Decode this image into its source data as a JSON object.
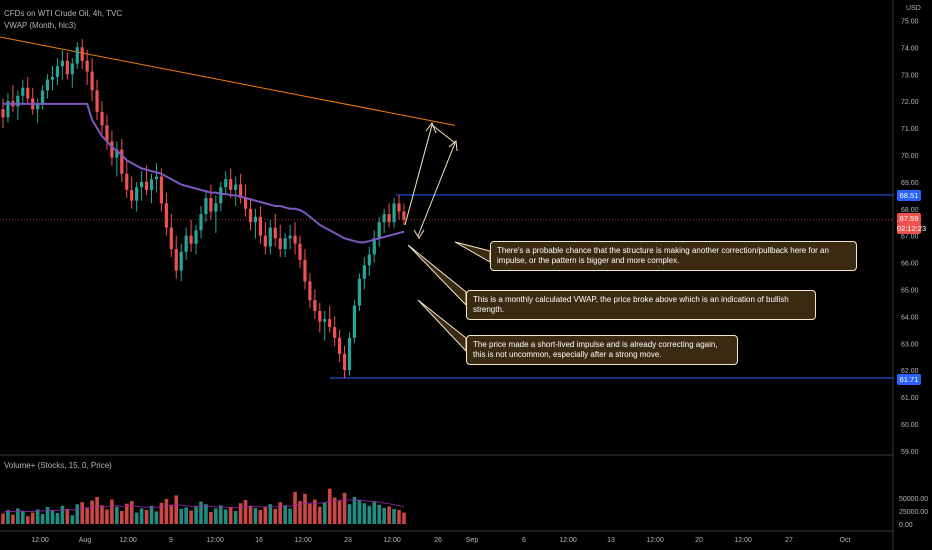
{
  "header": {
    "symbol": "CFDs on WTI Crude Oil, 4h, TVC",
    "indicator": "VWAP (Month, hlc3)",
    "volume_label": "Volume+ (Stocks, 15, 0, Price)",
    "currency": "USD"
  },
  "price_tags": {
    "top_level": "68.51",
    "current_price": "67.59",
    "countdown": "02:12:23",
    "bottom_level": "61.71"
  },
  "annotations": [
    "There's a probable chance that the structure is making another correction/pullback here for an impulse, or the pattern is bigger and more complex.",
    "This is a monthly calculated VWAP, the price broke above which is an indication of bullish strength.",
    "The price made a short-lived impulse and is already correcting again, this is not uncommon, especially after a strong move."
  ],
  "colors": {
    "background": "#000000",
    "up_candle": "#26a69a",
    "down_candle": "#ef5350",
    "vwap": "#7e57c2",
    "trendline": "#f57c00",
    "level_line": "#2962ff",
    "current_price": "#ef5350"
  },
  "chart_data": {
    "type": "candlestick",
    "price_axis": {
      "ticks": [
        "75.00",
        "74.00",
        "73.00",
        "72.00",
        "71.00",
        "70.00",
        "69.00",
        "68.00",
        "67.00",
        "66.00",
        "65.00",
        "64.00",
        "63.00",
        "62.00",
        "61.00",
        "60.00",
        "59.00"
      ],
      "range": [
        59,
        75.5
      ]
    },
    "volume_axis": {
      "ticks": [
        "50000.00",
        "25000.00",
        "0.00"
      ],
      "range": [
        0,
        75000
      ]
    },
    "time_axis": [
      "12:00",
      "Aug",
      "12:00",
      "9",
      "12:00",
      "16",
      "12:00",
      "23",
      "12:00",
      "26",
      "Sep",
      "6",
      "12:00",
      "13",
      "12:00",
      "20",
      "12:00",
      "27",
      "Oct"
    ],
    "candles": [
      {
        "o": 71.7,
        "h": 72.1,
        "l": 71.0,
        "c": 71.4
      },
      {
        "o": 71.4,
        "h": 72.3,
        "l": 71.2,
        "c": 72.0
      },
      {
        "o": 72.0,
        "h": 72.6,
        "l": 71.6,
        "c": 71.8
      },
      {
        "o": 71.8,
        "h": 72.4,
        "l": 71.3,
        "c": 72.2
      },
      {
        "o": 72.2,
        "h": 72.8,
        "l": 71.9,
        "c": 72.5
      },
      {
        "o": 72.5,
        "h": 72.9,
        "l": 71.9,
        "c": 72.1
      },
      {
        "o": 72.1,
        "h": 72.5,
        "l": 71.5,
        "c": 71.7
      },
      {
        "o": 71.7,
        "h": 72.1,
        "l": 71.2,
        "c": 71.9
      },
      {
        "o": 71.9,
        "h": 72.6,
        "l": 71.7,
        "c": 72.4
      },
      {
        "o": 72.4,
        "h": 73.0,
        "l": 72.1,
        "c": 72.8
      },
      {
        "o": 72.8,
        "h": 73.3,
        "l": 72.4,
        "c": 72.9
      },
      {
        "o": 72.9,
        "h": 73.6,
        "l": 72.6,
        "c": 73.3
      },
      {
        "o": 73.3,
        "h": 73.9,
        "l": 72.8,
        "c": 73.5
      },
      {
        "o": 73.5,
        "h": 73.8,
        "l": 72.8,
        "c": 73.0
      },
      {
        "o": 73.0,
        "h": 73.6,
        "l": 72.5,
        "c": 73.4
      },
      {
        "o": 73.4,
        "h": 74.2,
        "l": 73.2,
        "c": 74.0
      },
      {
        "o": 74.0,
        "h": 74.3,
        "l": 73.2,
        "c": 73.5
      },
      {
        "o": 73.5,
        "h": 73.9,
        "l": 72.6,
        "c": 73.1
      },
      {
        "o": 73.1,
        "h": 73.6,
        "l": 72.0,
        "c": 72.4
      },
      {
        "o": 72.4,
        "h": 72.8,
        "l": 71.3,
        "c": 71.6
      },
      {
        "o": 71.6,
        "h": 72.0,
        "l": 70.8,
        "c": 71.1
      },
      {
        "o": 71.1,
        "h": 71.5,
        "l": 70.2,
        "c": 70.5
      },
      {
        "o": 70.5,
        "h": 70.9,
        "l": 69.6,
        "c": 69.9
      },
      {
        "o": 69.9,
        "h": 70.5,
        "l": 69.2,
        "c": 70.2
      },
      {
        "o": 70.2,
        "h": 70.6,
        "l": 69.0,
        "c": 69.3
      },
      {
        "o": 69.3,
        "h": 69.8,
        "l": 68.4,
        "c": 68.7
      },
      {
        "o": 68.7,
        "h": 69.2,
        "l": 68.0,
        "c": 68.3
      },
      {
        "o": 68.3,
        "h": 69.0,
        "l": 67.9,
        "c": 68.8
      },
      {
        "o": 68.8,
        "h": 69.4,
        "l": 68.3,
        "c": 69.0
      },
      {
        "o": 69.0,
        "h": 69.6,
        "l": 68.5,
        "c": 68.7
      },
      {
        "o": 68.7,
        "h": 69.3,
        "l": 68.2,
        "c": 69.1
      },
      {
        "o": 69.1,
        "h": 69.7,
        "l": 68.6,
        "c": 69.2
      },
      {
        "o": 69.2,
        "h": 69.5,
        "l": 67.9,
        "c": 68.2
      },
      {
        "o": 68.2,
        "h": 68.6,
        "l": 67.0,
        "c": 67.3
      },
      {
        "o": 67.3,
        "h": 67.8,
        "l": 66.2,
        "c": 66.5
      },
      {
        "o": 66.5,
        "h": 67.0,
        "l": 65.4,
        "c": 65.7
      },
      {
        "o": 65.7,
        "h": 66.7,
        "l": 65.3,
        "c": 66.4
      },
      {
        "o": 66.4,
        "h": 67.3,
        "l": 66.1,
        "c": 67.0
      },
      {
        "o": 67.0,
        "h": 67.6,
        "l": 66.4,
        "c": 66.7
      },
      {
        "o": 66.7,
        "h": 67.4,
        "l": 66.3,
        "c": 67.2
      },
      {
        "o": 67.2,
        "h": 68.1,
        "l": 66.9,
        "c": 67.8
      },
      {
        "o": 67.8,
        "h": 68.7,
        "l": 67.5,
        "c": 68.4
      },
      {
        "o": 68.4,
        "h": 68.9,
        "l": 67.6,
        "c": 67.9
      },
      {
        "o": 67.9,
        "h": 68.5,
        "l": 67.1,
        "c": 68.2
      },
      {
        "o": 68.2,
        "h": 69.0,
        "l": 67.9,
        "c": 68.8
      },
      {
        "o": 68.8,
        "h": 69.4,
        "l": 68.5,
        "c": 69.1
      },
      {
        "o": 69.1,
        "h": 69.5,
        "l": 68.4,
        "c": 68.7
      },
      {
        "o": 68.7,
        "h": 69.2,
        "l": 68.1,
        "c": 68.9
      },
      {
        "o": 68.9,
        "h": 69.3,
        "l": 68.2,
        "c": 68.4
      },
      {
        "o": 68.4,
        "h": 68.9,
        "l": 67.7,
        "c": 68.0
      },
      {
        "o": 68.0,
        "h": 68.4,
        "l": 67.2,
        "c": 67.5
      },
      {
        "o": 67.5,
        "h": 68.0,
        "l": 66.9,
        "c": 67.7
      },
      {
        "o": 67.7,
        "h": 68.1,
        "l": 66.7,
        "c": 67.0
      },
      {
        "o": 67.0,
        "h": 67.5,
        "l": 66.3,
        "c": 66.6
      },
      {
        "o": 66.6,
        "h": 67.6,
        "l": 66.3,
        "c": 67.3
      },
      {
        "o": 67.3,
        "h": 67.8,
        "l": 66.6,
        "c": 66.9
      },
      {
        "o": 66.9,
        "h": 67.4,
        "l": 66.2,
        "c": 66.5
      },
      {
        "o": 66.5,
        "h": 67.1,
        "l": 66.2,
        "c": 66.9
      },
      {
        "o": 66.9,
        "h": 67.4,
        "l": 66.5,
        "c": 67.0
      },
      {
        "o": 67.0,
        "h": 67.5,
        "l": 66.3,
        "c": 66.7
      },
      {
        "o": 66.7,
        "h": 67.0,
        "l": 65.8,
        "c": 66.1
      },
      {
        "o": 66.1,
        "h": 66.5,
        "l": 65.0,
        "c": 65.3
      },
      {
        "o": 65.3,
        "h": 65.6,
        "l": 64.3,
        "c": 64.6
      },
      {
        "o": 64.6,
        "h": 65.0,
        "l": 63.9,
        "c": 64.2
      },
      {
        "o": 64.2,
        "h": 64.5,
        "l": 63.4,
        "c": 63.8
      },
      {
        "o": 63.8,
        "h": 64.2,
        "l": 63.1,
        "c": 63.9
      },
      {
        "o": 63.9,
        "h": 64.4,
        "l": 63.4,
        "c": 63.6
      },
      {
        "o": 63.6,
        "h": 64.0,
        "l": 62.9,
        "c": 63.2
      },
      {
        "o": 63.2,
        "h": 63.5,
        "l": 62.3,
        "c": 62.6
      },
      {
        "o": 62.6,
        "h": 62.9,
        "l": 61.7,
        "c": 62.0
      },
      {
        "o": 62.0,
        "h": 63.4,
        "l": 61.8,
        "c": 63.2
      },
      {
        "o": 63.2,
        "h": 64.6,
        "l": 63.0,
        "c": 64.4
      },
      {
        "o": 64.4,
        "h": 65.6,
        "l": 64.2,
        "c": 65.4
      },
      {
        "o": 65.4,
        "h": 66.2,
        "l": 65.0,
        "c": 65.9
      },
      {
        "o": 65.9,
        "h": 66.6,
        "l": 65.5,
        "c": 66.3
      },
      {
        "o": 66.3,
        "h": 67.2,
        "l": 66.0,
        "c": 66.9
      },
      {
        "o": 66.9,
        "h": 67.7,
        "l": 66.6,
        "c": 67.5
      },
      {
        "o": 67.5,
        "h": 68.0,
        "l": 67.1,
        "c": 67.8
      },
      {
        "o": 67.8,
        "h": 68.2,
        "l": 67.3,
        "c": 67.5
      },
      {
        "o": 67.5,
        "h": 68.4,
        "l": 67.3,
        "c": 68.2
      },
      {
        "o": 68.2,
        "h": 68.5,
        "l": 67.6,
        "c": 67.9
      },
      {
        "o": 67.9,
        "h": 68.2,
        "l": 67.4,
        "c": 67.59
      }
    ],
    "vwap": [
      71.9,
      71.9,
      71.9,
      71.9,
      71.9,
      71.9,
      71.9,
      71.9,
      71.9,
      71.9,
      71.9,
      71.9,
      71.9,
      71.9,
      71.9,
      71.9,
      71.9,
      71.9,
      71.3,
      71.0,
      70.7,
      70.5,
      70.3,
      70.15,
      70.0,
      69.8,
      69.7,
      69.6,
      69.5,
      69.45,
      69.4,
      69.35,
      69.3,
      69.2,
      69.1,
      69.0,
      68.9,
      68.85,
      68.8,
      68.75,
      68.7,
      68.65,
      68.6,
      68.6,
      68.55,
      68.55,
      68.5,
      68.5,
      68.45,
      68.4,
      68.35,
      68.3,
      68.25,
      68.2,
      68.15,
      68.1,
      68.1,
      68.05,
      68.0,
      68.0,
      67.95,
      67.85,
      67.7,
      67.55,
      67.4,
      67.3,
      67.2,
      67.1,
      67.0,
      66.9,
      66.85,
      66.8,
      66.75,
      66.75,
      66.8,
      66.85,
      66.9,
      66.95,
      67.0,
      67.05,
      67.1,
      67.15
    ],
    "volume": [
      20000,
      27000,
      18000,
      30000,
      24000,
      15000,
      22000,
      28000,
      19000,
      33000,
      26000,
      21000,
      35000,
      29000,
      17000,
      38000,
      42000,
      31000,
      45000,
      52000,
      36000,
      28000,
      47000,
      33000,
      25000,
      39000,
      44000,
      22000,
      30000,
      27000,
      35000,
      24000,
      41000,
      48000,
      37000,
      55000,
      29000,
      32000,
      26000,
      34000,
      43000,
      38000,
      23000,
      30000,
      36000,
      28000,
      32000,
      25000,
      40000,
      46000,
      35000,
      31000,
      27000,
      33000,
      38000,
      29000,
      42000,
      36000,
      30000,
      62000,
      44000,
      58000,
      39000,
      47000,
      33000,
      41000,
      68000,
      51000,
      45000,
      60000,
      38000,
      52000,
      46000,
      40000,
      35000,
      43000,
      37000,
      31000,
      34000,
      29000,
      27000,
      22000
    ],
    "volume_ma": [
      23000,
      24000,
      24000,
      25000,
      25000,
      24000,
      24000,
      25000,
      25000,
      26000,
      26000,
      26000,
      27000,
      28000,
      27000,
      28000,
      30000,
      31000,
      32000,
      34000,
      34000,
      33000,
      35000,
      35000,
      34000,
      35000,
      36000,
      34000,
      33000,
      32000,
      33000,
      32000,
      33000,
      35000,
      35000,
      37000,
      36000,
      35000,
      34000,
      34000,
      35000,
      35000,
      34000,
      33000,
      33000,
      32000,
      32000,
      31000,
      32000,
      34000,
      34000,
      34000,
      33000,
      33000,
      33000,
      33000,
      34000,
      34000,
      34000,
      37000,
      38000,
      40000,
      40000,
      41000,
      40000,
      41000,
      44000,
      45000,
      45000,
      47000,
      46000,
      46000,
      46000,
      45000,
      43000,
      43000,
      42000,
      40000,
      39000,
      37000,
      35000,
      33000
    ],
    "levels": [
      68.51,
      61.71
    ],
    "current_price": 67.59
  }
}
